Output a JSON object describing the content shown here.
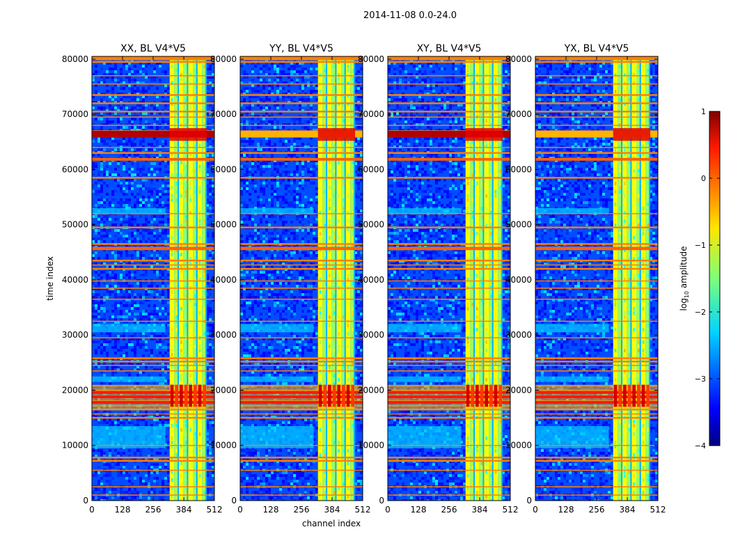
{
  "suptitle": "2014-11-08 0.0-24.0",
  "chart_data": {
    "type": "heatmap",
    "ylabel": "time index",
    "xlabel": "channel index",
    "xlim": [
      0,
      512
    ],
    "ylim": [
      0,
      80500
    ],
    "x_ticks": [
      0,
      128,
      256,
      384,
      512
    ],
    "y_ticks": [
      0,
      10000,
      20000,
      30000,
      40000,
      50000,
      60000,
      70000,
      80000
    ],
    "x_tick_labels": [
      "0",
      "128",
      "256",
      "384",
      "512"
    ],
    "y_tick_labels": [
      "0",
      "10000",
      "20000",
      "30000",
      "40000",
      "50000",
      "60000",
      "70000",
      "80000"
    ],
    "panels": [
      {
        "title": "XX, BL V4*V5",
        "show_ylabel": true,
        "show_xlabel": false
      },
      {
        "title": "YY, BL V4*V5",
        "show_ylabel": false,
        "show_xlabel": true
      },
      {
        "title": "XY, BL V4*V5",
        "show_ylabel": false,
        "show_xlabel": false
      },
      {
        "title": "YX, BL V4*V5",
        "show_ylabel": false,
        "show_xlabel": false
      }
    ],
    "colorbar": {
      "label_main": "log",
      "label_sub": "10",
      "label_rest": " amplitude",
      "range": [
        -4,
        1
      ],
      "ticks": [
        1,
        0,
        -1,
        -2,
        -3,
        -4
      ],
      "tick_labels": [
        "1",
        "0",
        "−1",
        "−2",
        "−3",
        "−4"
      ],
      "colormap": "jet"
    },
    "rfi_channel_band": [
      325,
      480
    ],
    "strong_rfi_rows": [
      18000,
      19000,
      20000,
      66500,
      65500
    ],
    "flag_lines": [
      1000,
      2500,
      5500,
      7200,
      7800,
      10000,
      15000,
      15700,
      16500,
      17200,
      18000,
      19000,
      20000,
      20800,
      23500,
      24500,
      25200,
      25800,
      29500,
      32500,
      36500,
      38500,
      39800,
      42000,
      42700,
      43500,
      45500,
      46500,
      49500,
      52000,
      58500,
      61800,
      63000,
      64000,
      66000,
      67000,
      68000,
      69500,
      70500,
      72000,
      73500,
      75500,
      77000,
      79500,
      80200
    ]
  }
}
